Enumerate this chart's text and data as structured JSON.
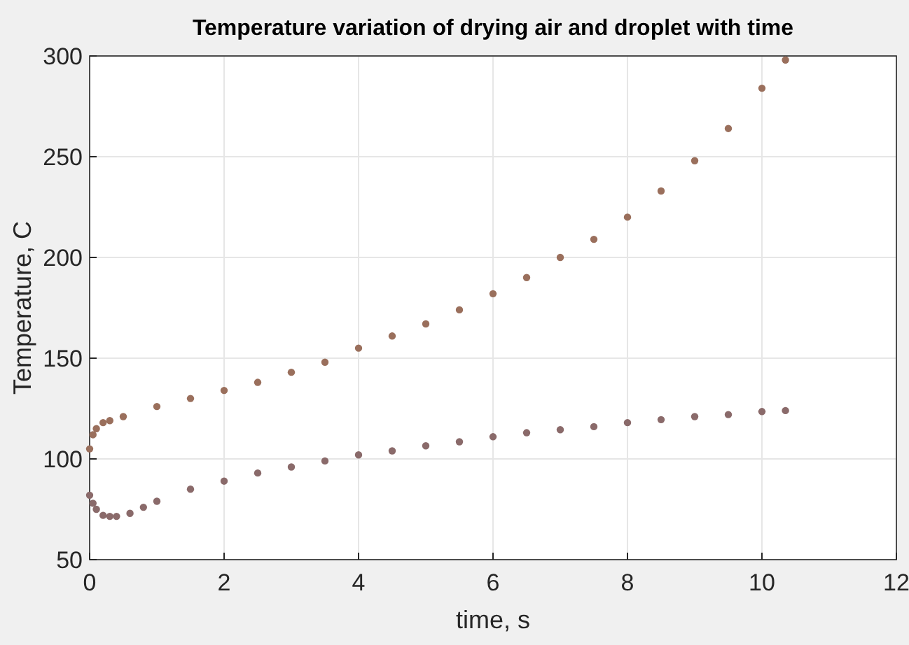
{
  "chart_data": {
    "type": "scatter",
    "title": "Temperature variation of drying air and droplet with time",
    "xlabel": "time, s",
    "ylabel": "Temperature, C",
    "xlim": [
      0,
      12
    ],
    "xticks": [
      0,
      2,
      4,
      6,
      8,
      10,
      12
    ],
    "ylim": [
      50,
      300
    ],
    "yticks": [
      50,
      100,
      150,
      200,
      250,
      300
    ],
    "grid": true,
    "marker": "circle",
    "series": [
      {
        "color": "#9a6f5c",
        "x": [
          0,
          0.05,
          0.1,
          0.2,
          0.3,
          0.5,
          1,
          1.5,
          2,
          2.5,
          3,
          3.5,
          4,
          4.5,
          5,
          5.5,
          6,
          6.5,
          7,
          7.5,
          8,
          8.5,
          9,
          9.5,
          10,
          10.35
        ],
        "values": [
          105,
          112,
          115,
          118,
          119,
          121,
          126,
          130,
          134,
          138,
          143,
          148,
          155,
          161,
          167,
          174,
          182,
          190,
          200,
          209,
          220,
          233,
          248,
          264,
          284,
          298
        ]
      },
      {
        "color": "#8a6a6a",
        "x": [
          0,
          0.05,
          0.1,
          0.2,
          0.3,
          0.4,
          0.6,
          0.8,
          1,
          1.5,
          2,
          2.5,
          3,
          3.5,
          4,
          4.5,
          5,
          5.5,
          6,
          6.5,
          7,
          7.5,
          8,
          8.5,
          9,
          9.5,
          10,
          10.35
        ],
        "values": [
          82,
          78,
          75,
          72,
          71.5,
          71.5,
          73,
          76,
          79,
          85,
          89,
          93,
          96,
          99,
          102,
          104,
          106.5,
          108.5,
          111,
          113,
          114.5,
          116,
          118,
          119.5,
          121,
          122,
          123.5,
          124
        ]
      }
    ]
  }
}
